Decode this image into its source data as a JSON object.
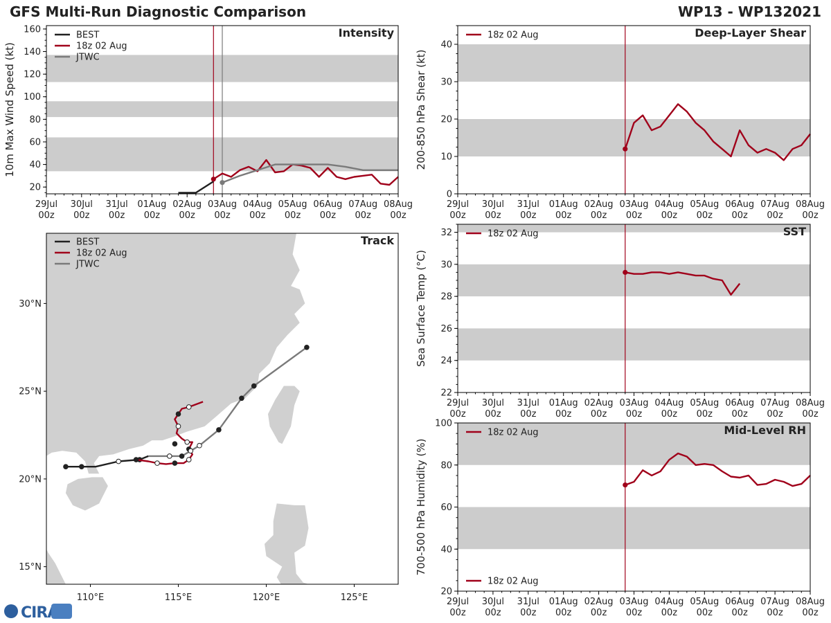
{
  "header": {
    "title": "GFS Multi-Run Diagnostic Comparison",
    "storm_id": "WP13 - WP132021"
  },
  "colors": {
    "best": "#202020",
    "run": "#a0001a",
    "jtwc": "#7a7a7a",
    "band": "#cccccc",
    "land": "#d0d0d0",
    "axis": "#000000"
  },
  "time_ticks": [
    "29Jul\n00z",
    "30Jul\n00z",
    "31Jul\n00z",
    "01Aug\n00z",
    "02Aug\n00z",
    "03Aug\n00z",
    "04Aug\n00z",
    "05Aug\n00z",
    "06Aug\n00z",
    "07Aug\n00z",
    "08Aug\n00z"
  ],
  "logo_text": "CIRA",
  "chart_data": [
    {
      "id": "intensity",
      "type": "line",
      "title": "Intensity",
      "ylabel": "10m Max Wind Speed (kt)",
      "xlabel": "",
      "xlim": [
        0,
        10
      ],
      "ylim": [
        14,
        163
      ],
      "yticks": [
        20,
        40,
        60,
        80,
        100,
        120,
        140,
        160
      ],
      "bands": [
        [
          34,
          64
        ],
        [
          82,
          96
        ],
        [
          113,
          137
        ]
      ],
      "legend": [
        "BEST",
        "18z 02 Aug",
        "JTWC"
      ],
      "vlines": [
        {
          "x": 4.75,
          "color": "run"
        },
        {
          "x": 5.0,
          "color": "jtwc"
        }
      ],
      "series": [
        {
          "name": "BEST",
          "color": "best",
          "x": [
            3.75,
            4.25,
            4.75
          ],
          "y": [
            15,
            15,
            25
          ]
        },
        {
          "name": "18z 02 Aug",
          "color": "run",
          "marker_first": true,
          "x": [
            4.75,
            5.0,
            5.25,
            5.5,
            5.75,
            6.0,
            6.25,
            6.5,
            6.75,
            7.0,
            7.25,
            7.5,
            7.75,
            8.0,
            8.25,
            8.5,
            8.75,
            9.0,
            9.25,
            9.5,
            9.75,
            10.0
          ],
          "y": [
            27,
            32,
            29,
            35,
            38,
            34,
            44,
            33,
            34,
            40,
            39,
            37,
            29,
            37,
            29,
            27,
            29,
            30,
            31,
            23,
            22,
            29
          ]
        },
        {
          "name": "JTWC",
          "color": "jtwc",
          "marker_first": true,
          "x": [
            5.0,
            5.5,
            6.0,
            6.5,
            7.0,
            7.5,
            8.0,
            8.5,
            9.0,
            9.5,
            10.0
          ],
          "y": [
            24,
            30,
            35,
            40,
            40,
            40,
            40,
            38,
            35,
            35,
            35
          ]
        }
      ]
    },
    {
      "id": "shear",
      "type": "line",
      "title": "Deep-Layer Shear",
      "ylabel": "200-850 hPa Shear (kt)",
      "xlabel": "",
      "xlim": [
        0,
        10
      ],
      "ylim": [
        0,
        45
      ],
      "yticks": [
        0,
        10,
        20,
        30,
        40
      ],
      "bands": [
        [
          10,
          20
        ],
        [
          30,
          40
        ]
      ],
      "legend": [
        "18z 02 Aug"
      ],
      "vlines": [
        {
          "x": 4.75,
          "color": "run"
        }
      ],
      "series": [
        {
          "name": "18z 02 Aug",
          "color": "run",
          "marker_first": true,
          "x": [
            4.75,
            5.0,
            5.25,
            5.5,
            5.75,
            6.0,
            6.25,
            6.5,
            6.75,
            7.0,
            7.25,
            7.5,
            7.75,
            8.0,
            8.25,
            8.5,
            8.75,
            9.0,
            9.25,
            9.5,
            9.75,
            10.0
          ],
          "y": [
            12,
            19,
            21,
            17,
            18,
            21,
            24,
            22,
            19,
            17,
            14,
            12,
            10,
            17,
            13,
            11,
            12,
            11,
            9,
            12,
            13,
            16
          ]
        }
      ]
    },
    {
      "id": "sst",
      "type": "line",
      "title": "SST",
      "ylabel": "Sea Surface Temp (°C)",
      "xlabel": "",
      "xlim": [
        0,
        10
      ],
      "ylim": [
        22,
        32.5
      ],
      "yticks": [
        22,
        24,
        26,
        28,
        30,
        32
      ],
      "bands": [
        [
          24,
          26
        ],
        [
          28,
          30
        ],
        [
          32,
          32.5
        ]
      ],
      "legend": [
        "18z 02 Aug"
      ],
      "vlines": [
        {
          "x": 4.75,
          "color": "run"
        }
      ],
      "series": [
        {
          "name": "18z 02 Aug",
          "color": "run",
          "marker_first": true,
          "x": [
            4.75,
            5.0,
            5.25,
            5.5,
            5.75,
            6.0,
            6.25,
            6.5,
            6.75,
            7.0,
            7.25,
            7.5,
            7.75,
            8.0
          ],
          "y": [
            29.5,
            29.4,
            29.4,
            29.5,
            29.5,
            29.4,
            29.5,
            29.4,
            29.3,
            29.3,
            29.1,
            29.0,
            28.1,
            28.8
          ]
        }
      ]
    },
    {
      "id": "rh",
      "type": "line",
      "title": "Mid-Level RH",
      "ylabel": "700-500 hPa Humidity (%)",
      "xlabel": "",
      "xlim": [
        0,
        10
      ],
      "ylim": [
        20,
        100
      ],
      "yticks": [
        20,
        40,
        60,
        80,
        100
      ],
      "bands": [
        [
          40,
          60
        ],
        [
          80,
          100
        ]
      ],
      "legend": [
        "18z 02 Aug"
      ],
      "vlines": [
        {
          "x": 4.75,
          "color": "run"
        }
      ],
      "series": [
        {
          "name": "18z 02 Aug",
          "color": "run",
          "marker_first": true,
          "x": [
            4.75,
            5.0,
            5.25,
            5.5,
            5.75,
            6.0,
            6.25,
            6.5,
            6.75,
            7.0,
            7.25,
            7.5,
            7.75,
            8.0,
            8.25,
            8.5,
            8.75,
            9.0,
            9.25,
            9.5,
            9.75,
            10.0
          ],
          "y": [
            70.5,
            72,
            77.5,
            75,
            77,
            82.5,
            85.5,
            84,
            80,
            80.5,
            80,
            77,
            74.5,
            74,
            75,
            70.5,
            71,
            73,
            72,
            70,
            71,
            75
          ]
        }
      ]
    },
    {
      "id": "track",
      "type": "scatter",
      "title": "Track",
      "xlabel": "",
      "ylabel": "",
      "xlim": [
        107.5,
        127.5
      ],
      "ylim": [
        14,
        34
      ],
      "xticks": [
        110,
        115,
        120,
        125
      ],
      "xticklabels": [
        "110°E",
        "115°E",
        "120°E",
        "125°E"
      ],
      "yticks": [
        15,
        20,
        25,
        30
      ],
      "yticklabels": [
        "15°N",
        "20°N",
        "25°N",
        "30°N"
      ],
      "legend": [
        "BEST",
        "18z 02 Aug",
        "JTWC"
      ],
      "series": [
        {
          "name": "BEST",
          "color": "best",
          "lon": [
            108.6,
            109.5,
            110.3,
            111.6,
            112.8,
            113.3
          ],
          "lat": [
            20.7,
            20.7,
            20.7,
            21.0,
            21.1,
            21.3
          ],
          "points": [
            {
              "i": 0,
              "f": true
            },
            {
              "i": 1,
              "f": true
            },
            {
              "i": 3,
              "f": false
            },
            {
              "i": 4,
              "f": true
            }
          ]
        },
        {
          "name": "18z 02 Aug",
          "color": "run",
          "lon": [
            112.6,
            113.3,
            113.8,
            114.3,
            114.8,
            115.3,
            115.6,
            115.8,
            115.6,
            115.8,
            115.5,
            115.2,
            114.9,
            115.0,
            114.8,
            115.0,
            115.2,
            115.6,
            116.4
          ],
          "lat": [
            21.1,
            21.0,
            20.9,
            20.85,
            20.9,
            20.9,
            21.1,
            21.4,
            21.7,
            22.1,
            22.1,
            22.3,
            22.6,
            23.0,
            23.4,
            23.7,
            24.0,
            24.1,
            24.4
          ],
          "points": [
            {
              "i": 0,
              "f": true
            },
            {
              "i": 2,
              "f": false
            },
            {
              "i": 4,
              "f": true
            },
            {
              "i": 6,
              "f": false
            },
            {
              "i": 8,
              "f": true
            },
            {
              "i": 10,
              "f": false
            },
            {
              "i": 13,
              "f": false
            },
            {
              "i": 15,
              "f": true
            },
            {
              "i": 17,
              "f": false
            }
          ]
        },
        {
          "name": "JTWC",
          "color": "jtwc",
          "lon": [
            113.3,
            114.5,
            115.2,
            115.7,
            116.2,
            117.3,
            118.6,
            119.3,
            122.3
          ],
          "lat": [
            21.3,
            21.3,
            21.3,
            21.6,
            21.9,
            22.8,
            24.6,
            25.3,
            27.5
          ],
          "points": [
            {
              "i": 1,
              "f": false
            },
            {
              "i": 2,
              "f": true
            },
            {
              "i": 3,
              "f": false
            },
            {
              "i": 4,
              "f": false
            },
            {
              "i": 5,
              "f": true
            },
            {
              "i": 6,
              "f": true
            },
            {
              "i": 7,
              "f": true
            },
            {
              "i": 8,
              "f": true
            }
          ]
        },
        {
          "name": "BEST-end",
          "color": "best",
          "lon": [
            114.8
          ],
          "lat": [
            22.0
          ],
          "points": [
            {
              "i": 0,
              "f": true
            }
          ]
        }
      ]
    }
  ]
}
